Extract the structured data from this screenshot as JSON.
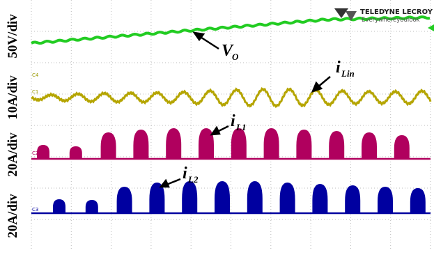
{
  "channel_scales": [
    "50V/div",
    "10A/div",
    "20A/div",
    "20A/div"
  ],
  "channel_markers": [
    "C4",
    "C1",
    "C2",
    "C3"
  ],
  "annotations": [
    {
      "symbol": "V",
      "subscript": "O"
    },
    {
      "symbol": "i",
      "subscript": "Lin"
    },
    {
      "symbol": "i",
      "subscript": "L1"
    },
    {
      "symbol": "i",
      "subscript": "L2"
    }
  ],
  "logo": {
    "brand": "TELEDYNE LECROY",
    "tagline": "Everywhereyoulook"
  }
}
